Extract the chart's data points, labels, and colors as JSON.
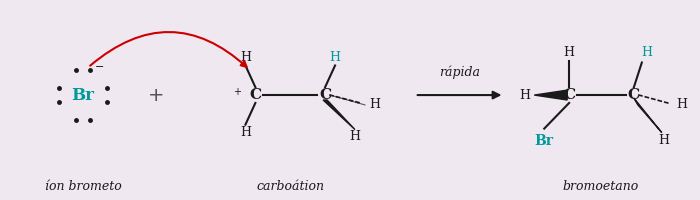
{
  "bg_color": "#f0e8f0",
  "teal": "#009999",
  "black": "#1a1a1a",
  "red": "#cc0000",
  "gray": "#555555",
  "label_brometo": "íon brometo",
  "label_carbocation": "carboátion",
  "label_produto": "bromoetano",
  "label_rapida": "rápida",
  "figsize": [
    7.0,
    2.0
  ],
  "dpi": 100
}
